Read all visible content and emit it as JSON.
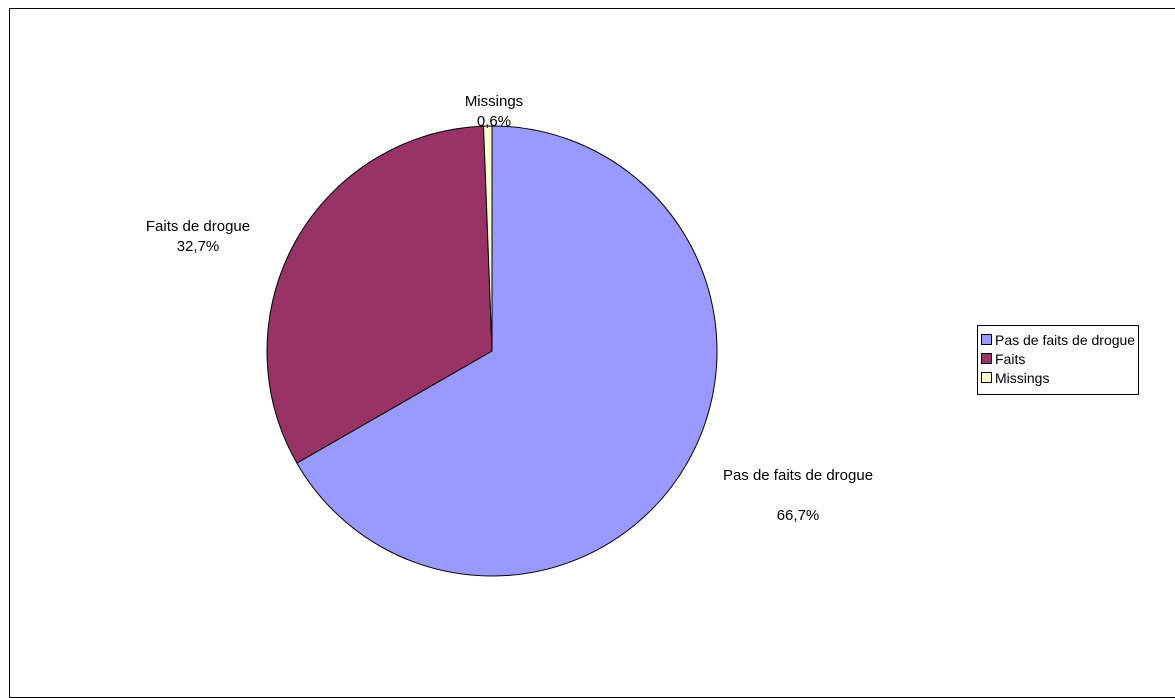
{
  "chart_data": {
    "type": "pie",
    "title": "",
    "slices": [
      {
        "name": "Pas de faits de drogue",
        "label": "Pas de faits de drogue",
        "value": 66.7,
        "value_label": "66,7%",
        "color": "#9999FF"
      },
      {
        "name": "Faits",
        "label": "Faits de drogue",
        "value": 32.7,
        "value_label": "32,7%",
        "color": "#993366"
      },
      {
        "name": "Missings",
        "label": "Missings",
        "value": 0.6,
        "value_label": "0,6%",
        "color": "#FFFFCC"
      }
    ],
    "legend": {
      "position": "right",
      "items": [
        "Pas de faits de drogue",
        "Faits",
        "Missings"
      ]
    },
    "start_angle": "12 o'clock",
    "direction": "clockwise"
  }
}
